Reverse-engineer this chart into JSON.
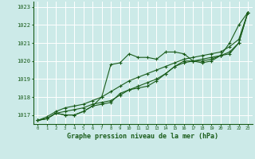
{
  "xlabel": "Graphe pression niveau de la mer (hPa)",
  "bg_color": "#cceae8",
  "grid_color": "#ffffff",
  "line_color": "#1a5c1a",
  "ylim": [
    1016.5,
    1023.3
  ],
  "xlim": [
    -0.5,
    23.5
  ],
  "yticks": [
    1017,
    1018,
    1019,
    1020,
    1021,
    1022,
    1023
  ],
  "xticks": [
    0,
    1,
    2,
    3,
    4,
    5,
    6,
    7,
    8,
    9,
    10,
    11,
    12,
    13,
    14,
    15,
    16,
    17,
    18,
    19,
    20,
    21,
    22,
    23
  ],
  "series": [
    [
      1016.7,
      1016.8,
      1017.1,
      1017.0,
      1017.0,
      1017.2,
      1017.5,
      1018.0,
      1019.8,
      1019.9,
      1020.4,
      1020.2,
      1020.2,
      1020.1,
      1020.5,
      1020.5,
      1020.4,
      1020.0,
      1019.9,
      1020.0,
      1020.3,
      1021.0,
      1022.0,
      1022.7
    ],
    [
      1016.7,
      1016.8,
      1017.1,
      1017.0,
      1017.0,
      1017.2,
      1017.5,
      1017.6,
      1017.7,
      1018.2,
      1018.4,
      1018.5,
      1018.6,
      1018.9,
      1019.3,
      1019.7,
      1019.9,
      1020.0,
      1020.0,
      1020.1,
      1020.3,
      1020.4,
      1021.0,
      1022.7
    ],
    [
      1016.7,
      1016.8,
      1017.1,
      1017.2,
      1017.3,
      1017.4,
      1017.6,
      1017.7,
      1017.8,
      1018.1,
      1018.4,
      1018.6,
      1018.8,
      1019.0,
      1019.3,
      1019.7,
      1020.0,
      1020.0,
      1020.1,
      1020.2,
      1020.3,
      1020.5,
      1021.0,
      1022.7
    ],
    [
      1016.7,
      1016.9,
      1017.2,
      1017.4,
      1017.5,
      1017.6,
      1017.8,
      1018.0,
      1018.3,
      1018.6,
      1018.9,
      1019.1,
      1019.3,
      1019.5,
      1019.7,
      1019.9,
      1020.1,
      1020.2,
      1020.3,
      1020.4,
      1020.5,
      1020.8,
      1021.2,
      1022.7
    ]
  ]
}
